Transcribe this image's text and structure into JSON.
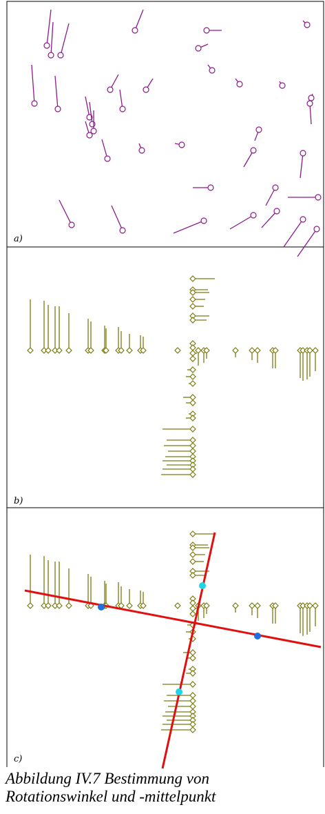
{
  "panels": [
    {
      "label": "a)"
    },
    {
      "label": "b)"
    },
    {
      "label": "c)"
    }
  ],
  "colors": {
    "panel_a_glyph": "#8b1a8b",
    "panel_bc_glyph": "#7a7a10",
    "fit_line": "#e01010",
    "marker_light": "#19d7e6",
    "marker_dark": "#1e6fe0",
    "frame": "#000000"
  },
  "caption": {
    "line1": "Abbildung IV.7 Bestimmung von",
    "line2": "Rotationswinkel und -mittelpunkt"
  }
}
